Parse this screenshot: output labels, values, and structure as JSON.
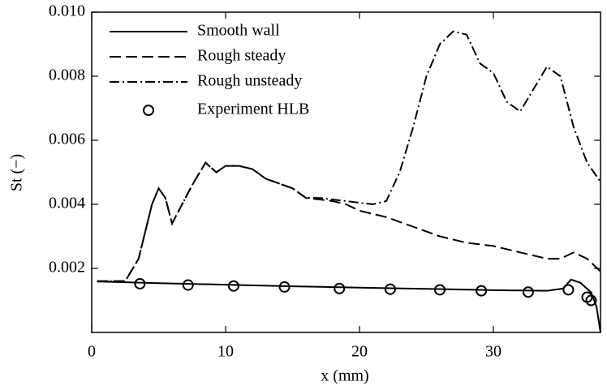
{
  "chart_data": {
    "type": "line",
    "xlabel": "x (mm)",
    "ylabel": "St (−)",
    "xlim": [
      0,
      38
    ],
    "xticks": [
      0,
      10,
      20,
      30
    ],
    "ylim": [
      0,
      0.01
    ],
    "yticks": [
      0.002,
      0.004,
      0.006,
      0.008,
      {
        "value": 0.01,
        "label": "0.010"
      }
    ],
    "legend": "upper-left",
    "series": [
      {
        "name": "Smooth wall",
        "color": "#000000",
        "style": "solid",
        "x": [
          0.4,
          5,
          10,
          15,
          20,
          25,
          30,
          34,
          35.2,
          35.8,
          36.5,
          37.3,
          37.7,
          38
        ],
        "values": [
          0.00159,
          0.00154,
          0.00149,
          0.00144,
          0.0014,
          0.00136,
          0.00132,
          0.0013,
          0.00137,
          0.00165,
          0.00155,
          0.00125,
          0.0008,
          0
        ]
      },
      {
        "name": "Rough steady",
        "color": "#000000",
        "style": "dashed",
        "x": [
          0.4,
          2.5,
          3.5,
          4.5,
          5,
          5.5,
          6,
          6.5,
          7.5,
          8.5,
          9.3,
          10,
          11,
          12,
          13,
          15,
          16,
          18,
          19,
          20,
          22,
          24,
          26,
          28,
          30,
          32,
          34,
          35,
          36,
          37,
          38
        ],
        "values": [
          0.0016,
          0.0016,
          0.0023,
          0.004,
          0.0045,
          0.0042,
          0.0034,
          0.0038,
          0.0046,
          0.0053,
          0.005,
          0.0052,
          0.0052,
          0.0051,
          0.0048,
          0.0045,
          0.0042,
          0.0041,
          0.004,
          0.0038,
          0.0036,
          0.0033,
          0.003,
          0.0028,
          0.0027,
          0.0025,
          0.0023,
          0.0023,
          0.0025,
          0.0023,
          0.0019
        ]
      },
      {
        "name": "Rough unsteady",
        "color": "#000000",
        "style": "dashdot",
        "x": [
          0.4,
          2.5,
          3.5,
          4.5,
          5,
          5.5,
          6,
          6.5,
          7.5,
          8.5,
          9.3,
          10,
          11,
          12,
          13,
          15,
          16,
          17,
          19,
          21,
          22,
          23,
          24,
          25,
          26,
          27,
          28,
          29,
          30,
          31,
          32,
          33,
          34,
          35,
          36,
          37,
          38
        ],
        "values": [
          0.0016,
          0.0016,
          0.0023,
          0.004,
          0.0045,
          0.0042,
          0.0034,
          0.0038,
          0.0046,
          0.0053,
          0.005,
          0.0052,
          0.0052,
          0.0051,
          0.0048,
          0.0045,
          0.0042,
          0.0042,
          0.0041,
          0.004,
          0.0041,
          0.005,
          0.0064,
          0.008,
          0.009,
          0.0094,
          0.0093,
          0.0084,
          0.0081,
          0.0072,
          0.0069,
          0.0076,
          0.0083,
          0.008,
          0.0064,
          0.0053,
          0.0047
        ]
      },
      {
        "name": "Experiment HLB",
        "color": "#000000",
        "style": "markers",
        "x": [
          3.6,
          7.2,
          10.6,
          14.4,
          18.5,
          22.3,
          26,
          29.1,
          32.6,
          35.6,
          37,
          37.3
        ],
        "values": [
          0.00152,
          0.00148,
          0.00145,
          0.00142,
          0.00137,
          0.00135,
          0.00133,
          0.0013,
          0.00126,
          0.00133,
          0.0011,
          0.001
        ]
      }
    ]
  }
}
